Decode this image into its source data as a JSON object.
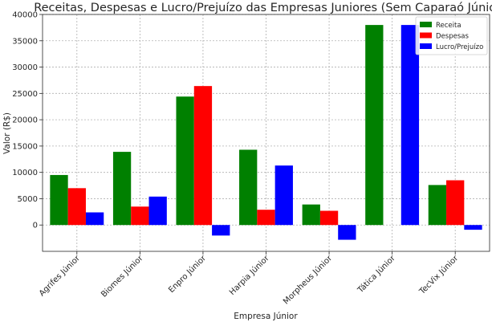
{
  "chart_data": {
    "type": "bar",
    "title": "Receitas, Despesas e Lucro/Prejuízo das Empresas Juniores (Sem Caparaó Júnior)",
    "xlabel": "Empresa Júnior",
    "ylabel": "Valor (R$)",
    "categories": [
      "Agrifes Júnior",
      "Biomes Júnior",
      "Enpro Júnior",
      "Harpia Júnior",
      "Morpheus Júnior",
      "Tática Júnior",
      "TecVix Júnior"
    ],
    "series": [
      {
        "name": "Receita",
        "color": "#008000",
        "values": [
          9500,
          13900,
          24400,
          14300,
          3900,
          38000,
          7600
        ]
      },
      {
        "name": "Despesas",
        "color": "#ff0000",
        "values": [
          7000,
          3500,
          26400,
          2900,
          2700,
          0,
          8500
        ]
      },
      {
        "name": "Lucro/Prejuízo",
        "color": "#0000ff",
        "values": [
          2400,
          5400,
          -2000,
          11300,
          -2800,
          38000,
          -900
        ]
      }
    ],
    "ylim": [
      -5000,
      40000
    ],
    "yticks": [
      0,
      5000,
      10000,
      15000,
      20000,
      25000,
      30000,
      35000,
      40000
    ],
    "grid": true,
    "legend": "top-right"
  }
}
